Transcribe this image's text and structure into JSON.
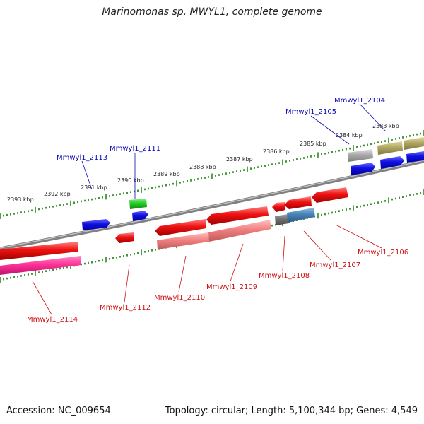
{
  "title": "Marinomonas sp. MWYL1, complete genome",
  "footer": {
    "accession": "Accession: NC_009654",
    "summary": "Topology: circular; Length: 5,100,344 bp; Genes: 4,549"
  },
  "colors": {
    "backbone": "#808080",
    "tick": "#2e8b22",
    "forward_label": "#0a0ab4",
    "reverse_label": "#cc1010",
    "cds_blue": "#1010e0",
    "cds_red": "#ee1111",
    "trna_green": "#22cc22",
    "pink": "#ff3399",
    "salmon": "#f08080",
    "olive": "#b0a860",
    "gray": "#aaaaaa",
    "darkgray": "#707070",
    "steel": "#4682b4"
  },
  "scale_labels": [
    "2383 kbp",
    "2384 kbp",
    "2385 kbp",
    "2386 kbp",
    "2387 kbp",
    "2388 kbp",
    "2389 kbp",
    "2390 kbp",
    "2391 kbp",
    "2392 kbp",
    "2393 kbp"
  ],
  "gene_labels": {
    "forward": [
      "Mmwyl1_2104",
      "Mmwyl1_2105",
      "Mmwyl1_2111",
      "Mmwyl1_2113"
    ],
    "reverse": [
      "Mmwyl1_2106",
      "Mmwyl1_2107",
      "Mmwyl1_2108",
      "Mmwyl1_2109",
      "Mmwyl1_2110",
      "Mmwyl1_2112",
      "Mmwyl1_2114"
    ]
  }
}
